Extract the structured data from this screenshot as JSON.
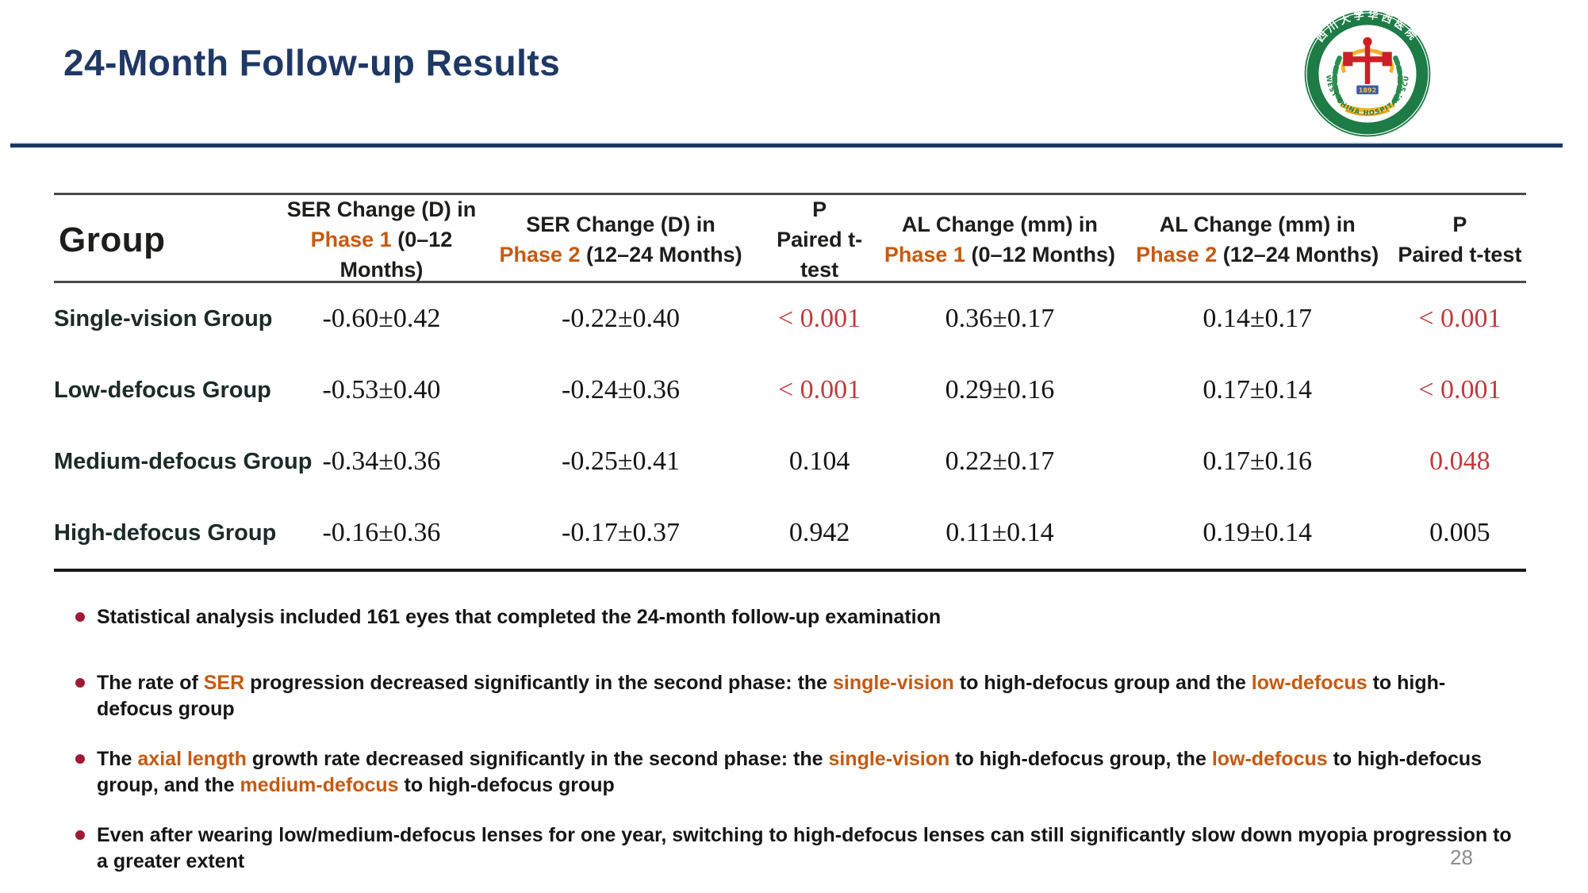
{
  "slide": {
    "title": "24-Month Follow-up Results",
    "page_number": "28"
  },
  "colors": {
    "title_navy": "#1F3864",
    "accent_orange": "#C55A11",
    "significant_red": "#C13B3B",
    "bullet_marker_red": "#9E1B32",
    "logo_green": "#1D7B45",
    "logo_gold": "#F0B32A",
    "logo_red": "#CC2028"
  },
  "logo": {
    "alt": "West China Hospital SCU seal",
    "top_text": "四川大学华西医院",
    "bottom_text": "WEST CHINA HOSPITAL, SCU",
    "year": "1892"
  },
  "table": {
    "columns": [
      {
        "title": "Group"
      },
      {
        "line1": "SER Change (D) in",
        "phase": "Phase 1",
        "range": " (0–12 Months)"
      },
      {
        "line1": "SER Change (D) in",
        "phase": "Phase 2",
        "range": " (12–24 Months)"
      },
      {
        "line1": "P",
        "line2": "Paired t-test"
      },
      {
        "line1": "AL Change (mm) in",
        "phase": "Phase 1",
        "range": " (0–12 Months)"
      },
      {
        "line1": "AL Change (mm) in",
        "phase": "Phase 2",
        "range": " (12–24 Months)"
      },
      {
        "line1": "P",
        "line2": "Paired t-test"
      }
    ],
    "rows": [
      {
        "group": "Single-vision Group",
        "ser_p1": "-0.60±0.42",
        "ser_p2": "-0.22±0.40",
        "p1": "< 0.001",
        "p1_red": true,
        "al_p1": "0.36±0.17",
        "al_p2": "0.14±0.17",
        "p2": "< 0.001",
        "p2_red": true
      },
      {
        "group": "Low-defocus Group",
        "ser_p1": "-0.53±0.40",
        "ser_p2": "-0.24±0.36",
        "p1": "< 0.001",
        "p1_red": true,
        "al_p1": "0.29±0.16",
        "al_p2": "0.17±0.14",
        "p2": "< 0.001",
        "p2_red": true
      },
      {
        "group": "Medium-defocus Group",
        "ser_p1": "-0.34±0.36",
        "ser_p2": "-0.25±0.41",
        "p1": "0.104",
        "p1_red": false,
        "al_p1": "0.22±0.17",
        "al_p2": "0.17±0.16",
        "p2": "0.048",
        "p2_red": true
      },
      {
        "group": "High-defocus Group",
        "ser_p1": "-0.16±0.36",
        "ser_p2": "-0.17±0.37",
        "p1": "0.942",
        "p1_red": false,
        "al_p1": "0.11±0.14",
        "al_p2": "0.19±0.14",
        "p2": "0.005",
        "p2_red": false
      }
    ]
  },
  "bullets": [
    {
      "segments": [
        {
          "t": "Statistical analysis included 161 eyes that completed the 24-month follow-up examination",
          "hl": false
        }
      ]
    },
    {
      "segments": [
        {
          "t": "The rate of ",
          "hl": false
        },
        {
          "t": "SER",
          "hl": true
        },
        {
          "t": " progression decreased significantly in the second phase: the ",
          "hl": false
        },
        {
          "t": "single-vision",
          "hl": true
        },
        {
          "t": " to high-defocus group and the ",
          "hl": false
        },
        {
          "t": "low-defocus",
          "hl": true
        },
        {
          "t": " to high-defocus group",
          "hl": false
        }
      ]
    },
    {
      "segments": [
        {
          "t": "The ",
          "hl": false
        },
        {
          "t": "axial length",
          "hl": true
        },
        {
          "t": " growth rate decreased significantly in the second phase: the ",
          "hl": false
        },
        {
          "t": "single-vision",
          "hl": true
        },
        {
          "t": " to high-defocus group, the ",
          "hl": false
        },
        {
          "t": "low-defocus",
          "hl": true
        },
        {
          "t": " to high-defocus group, and the ",
          "hl": false
        },
        {
          "t": "medium-defocus",
          "hl": true
        },
        {
          "t": " to high-defocus group",
          "hl": false
        }
      ]
    },
    {
      "segments": [
        {
          "t": "Even after wearing low/medium-defocus lenses for one year, switching to high-defocus lenses can still significantly slow down myopia progression to a greater extent",
          "hl": false
        }
      ]
    }
  ]
}
